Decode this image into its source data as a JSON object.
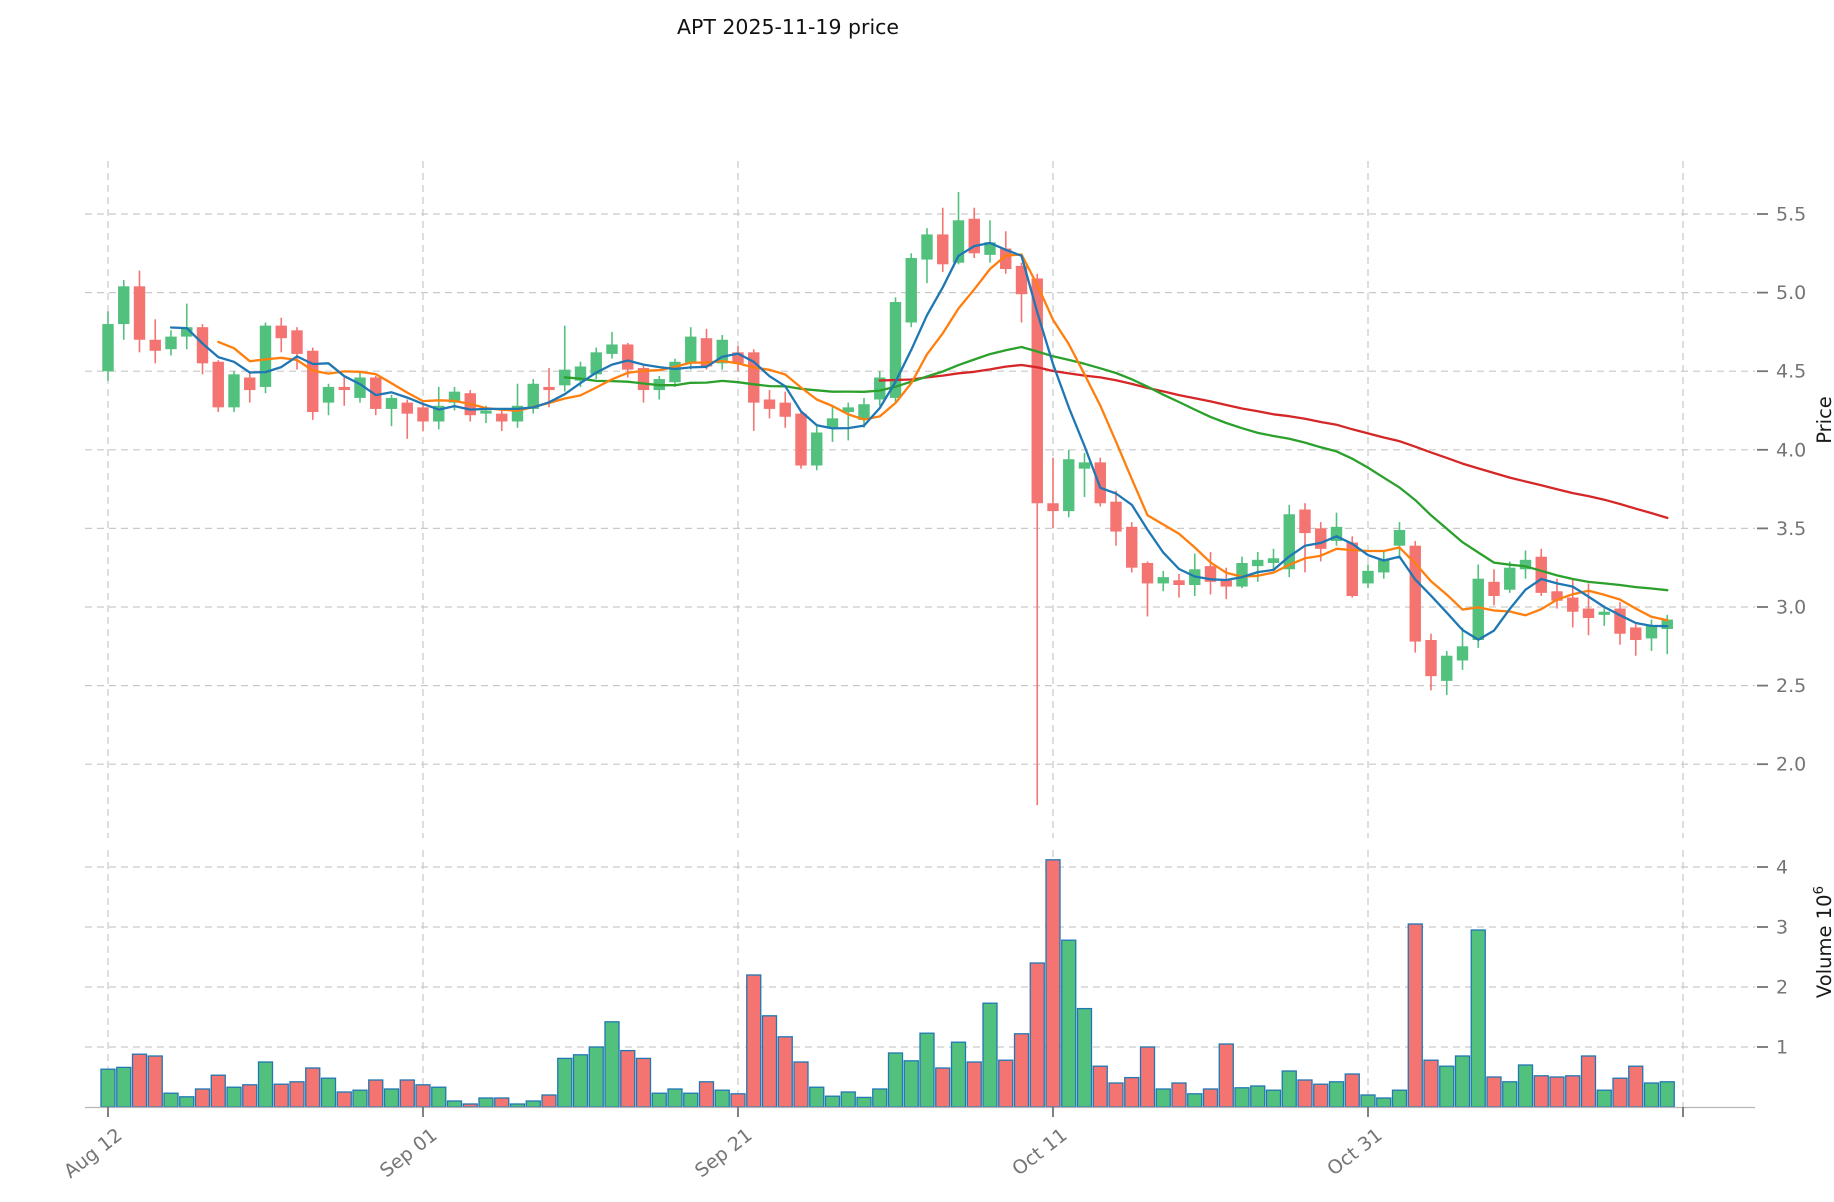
{
  "title": "APT  2025-11-19  price",
  "colors": {
    "background": "#ffffff",
    "up": "#53c17e",
    "down": "#f47471",
    "volume_edge": "#2077b4",
    "ma": [
      "#1f77b4",
      "#ff7f0e",
      "#2ca02c",
      "#d62728"
    ],
    "grid": "#c9c9c9",
    "tick_text": "#757575",
    "title_text": "#111111",
    "axis_label_text": "#1a1a1a",
    "spine": "#b5b5b5"
  },
  "price_axis": {
    "label": "Price",
    "tick_values": [
      2.0,
      2.5,
      3.0,
      3.5,
      4.0,
      4.5,
      5.0,
      5.5
    ],
    "tick_labels": [
      "2.0",
      "2.5",
      "3.0",
      "3.5",
      "4.0",
      "4.5",
      "5.0",
      "5.5"
    ]
  },
  "volume_axis": {
    "label": "Volume",
    "unit_mantissa": "10",
    "unit_exponent": "6",
    "tick_values": [
      1,
      2,
      3,
      4
    ],
    "tick_labels": [
      "1",
      "2",
      "3",
      "4"
    ]
  },
  "x_axis": {
    "ticks": [
      {
        "index": 0,
        "label": "Aug 12"
      },
      {
        "index": 20,
        "label": "Sep 01"
      },
      {
        "index": 40,
        "label": "Sep 21"
      },
      {
        "index": 60,
        "label": "Oct 11"
      },
      {
        "index": 80,
        "label": "Oct 31"
      },
      {
        "index": 100,
        "label": ""
      }
    ]
  },
  "chart_data": {
    "type": "candlestick",
    "title": "APT  2025-11-19  price",
    "ylabel": "Price",
    "ylabel_lower": "Volume 10^6",
    "grid": "dashed",
    "legend_position": "none",
    "price_ylim": [
      1.55,
      5.84
    ],
    "volume_ylim_millions": [
      0,
      4.3
    ],
    "moving_averages": [
      {
        "window": 5,
        "color_index": 0
      },
      {
        "window": 8,
        "color_index": 1
      },
      {
        "window": 30,
        "color_index": 2
      },
      {
        "window": 50,
        "color_index": 3
      }
    ],
    "open": [
      4.5,
      4.8,
      5.04,
      4.7,
      4.64,
      4.72,
      4.78,
      4.56,
      4.27,
      4.46,
      4.4,
      4.79,
      4.76,
      4.63,
      4.3,
      4.4,
      4.33,
      4.46,
      4.26,
      4.3,
      4.27,
      4.18,
      4.3,
      4.36,
      4.23,
      4.23,
      4.18,
      4.26,
      4.4,
      4.41,
      4.44,
      4.48,
      4.61,
      4.67,
      4.52,
      4.38,
      4.43,
      4.55,
      4.71,
      4.55,
      4.62,
      4.62,
      4.32,
      4.3,
      4.23,
      3.9,
      4.14,
      4.24,
      4.19,
      4.32,
      4.33,
      4.81,
      5.21,
      5.37,
      5.19,
      5.47,
      5.24,
      5.28,
      5.17,
      5.09,
      3.66,
      3.61,
      3.88,
      3.92,
      3.67,
      3.51,
      3.28,
      3.15,
      3.17,
      3.14,
      3.26,
      3.17,
      3.13,
      3.26,
      3.28,
      3.24,
      3.62,
      3.5,
      3.42,
      3.41,
      3.15,
      3.22,
      3.39,
      3.39,
      2.79,
      2.53,
      2.66,
      2.79,
      3.16,
      3.11,
      3.24,
      3.32,
      3.1,
      3.06,
      2.99,
      2.95,
      2.99,
      2.87,
      2.8,
      2.86
    ],
    "high": [
      4.88,
      5.08,
      5.14,
      4.83,
      4.76,
      4.93,
      4.8,
      4.57,
      4.5,
      4.5,
      4.81,
      4.84,
      4.78,
      4.65,
      4.42,
      4.46,
      4.49,
      4.47,
      4.35,
      4.32,
      4.3,
      4.4,
      4.4,
      4.38,
      4.28,
      4.25,
      4.42,
      4.45,
      4.52,
      4.79,
      4.56,
      4.65,
      4.75,
      4.68,
      4.54,
      4.47,
      4.58,
      4.78,
      4.77,
      4.73,
      4.66,
      4.64,
      4.38,
      4.37,
      4.25,
      4.16,
      4.28,
      4.3,
      4.33,
      4.5,
      4.97,
      5.25,
      5.41,
      5.54,
      5.64,
      5.54,
      5.46,
      5.39,
      5.19,
      5.12,
      3.95,
      4.0,
      3.98,
      3.95,
      3.74,
      3.54,
      3.29,
      3.23,
      3.21,
      3.34,
      3.35,
      3.25,
      3.32,
      3.35,
      3.37,
      3.65,
      3.66,
      3.54,
      3.6,
      3.45,
      3.27,
      3.35,
      3.54,
      3.42,
      2.83,
      2.72,
      2.87,
      3.27,
      3.24,
      3.29,
      3.36,
      3.37,
      3.18,
      3.18,
      3.15,
      3.01,
      3.03,
      2.89,
      2.92,
      2.95
    ],
    "low": [
      4.44,
      4.7,
      4.62,
      4.55,
      4.6,
      4.64,
      4.48,
      4.24,
      4.24,
      4.3,
      4.36,
      4.62,
      4.51,
      4.19,
      4.22,
      4.28,
      4.3,
      4.22,
      4.15,
      4.07,
      4.12,
      4.13,
      4.25,
      4.18,
      4.17,
      4.12,
      4.14,
      4.23,
      4.27,
      4.37,
      4.4,
      4.45,
      4.58,
      4.46,
      4.3,
      4.32,
      4.4,
      4.51,
      4.51,
      4.51,
      4.5,
      4.12,
      4.2,
      4.14,
      3.88,
      3.87,
      4.05,
      4.06,
      4.14,
      4.28,
      4.3,
      4.78,
      5.06,
      5.13,
      5.18,
      5.22,
      5.19,
      5.12,
      4.81,
      1.74,
      3.5,
      3.57,
      3.7,
      3.64,
      3.39,
      3.22,
      2.94,
      3.1,
      3.06,
      3.07,
      3.08,
      3.05,
      3.12,
      3.16,
      3.24,
      3.19,
      3.22,
      3.29,
      3.39,
      3.06,
      3.12,
      3.18,
      3.31,
      2.71,
      2.47,
      2.44,
      2.6,
      2.74,
      3.01,
      3.09,
      3.18,
      3.07,
      2.99,
      2.87,
      2.82,
      2.88,
      2.76,
      2.69,
      2.72,
      2.7
    ],
    "close": [
      4.8,
      5.04,
      4.7,
      4.63,
      4.72,
      4.78,
      4.55,
      4.27,
      4.48,
      4.38,
      4.79,
      4.71,
      4.61,
      4.24,
      4.4,
      4.38,
      4.46,
      4.26,
      4.33,
      4.23,
      4.18,
      4.28,
      4.37,
      4.22,
      4.25,
      4.18,
      4.28,
      4.42,
      4.38,
      4.51,
      4.53,
      4.62,
      4.67,
      4.51,
      4.38,
      4.45,
      4.56,
      4.72,
      4.53,
      4.7,
      4.55,
      4.3,
      4.26,
      4.21,
      3.9,
      4.11,
      4.2,
      4.27,
      4.29,
      4.46,
      4.94,
      5.22,
      5.37,
      5.18,
      5.46,
      5.25,
      5.32,
      5.15,
      4.99,
      3.66,
      3.61,
      3.94,
      3.92,
      3.66,
      3.48,
      3.25,
      3.15,
      3.19,
      3.14,
      3.24,
      3.16,
      3.13,
      3.28,
      3.3,
      3.31,
      3.59,
      3.47,
      3.37,
      3.51,
      3.07,
      3.23,
      3.3,
      3.49,
      2.78,
      2.56,
      2.69,
      2.75,
      3.18,
      3.07,
      3.25,
      3.3,
      3.09,
      3.04,
      2.97,
      2.93,
      2.97,
      2.83,
      2.79,
      2.88,
      2.92
    ],
    "volume_millions": [
      0.63,
      0.66,
      0.88,
      0.85,
      0.23,
      0.17,
      0.3,
      0.53,
      0.33,
      0.37,
      0.75,
      0.38,
      0.42,
      0.65,
      0.48,
      0.25,
      0.28,
      0.45,
      0.3,
      0.45,
      0.37,
      0.33,
      0.1,
      0.05,
      0.15,
      0.15,
      0.05,
      0.1,
      0.2,
      0.81,
      0.87,
      1.0,
      1.42,
      0.94,
      0.81,
      0.23,
      0.3,
      0.23,
      0.42,
      0.28,
      0.22,
      2.2,
      1.52,
      1.17,
      0.75,
      0.33,
      0.18,
      0.25,
      0.16,
      0.3,
      0.9,
      0.77,
      1.23,
      0.65,
      1.08,
      0.75,
      1.73,
      0.78,
      1.22,
      2.4,
      4.12,
      2.78,
      1.64,
      0.68,
      0.4,
      0.49,
      1.0,
      0.3,
      0.4,
      0.22,
      0.3,
      1.05,
      0.32,
      0.35,
      0.28,
      0.6,
      0.45,
      0.38,
      0.42,
      0.55,
      0.2,
      0.15,
      0.28,
      3.05,
      0.78,
      0.68,
      0.85,
      2.95,
      0.5,
      0.42,
      0.7,
      0.52,
      0.5,
      0.52,
      0.85,
      0.28,
      0.48,
      0.68,
      0.4,
      0.42
    ]
  }
}
